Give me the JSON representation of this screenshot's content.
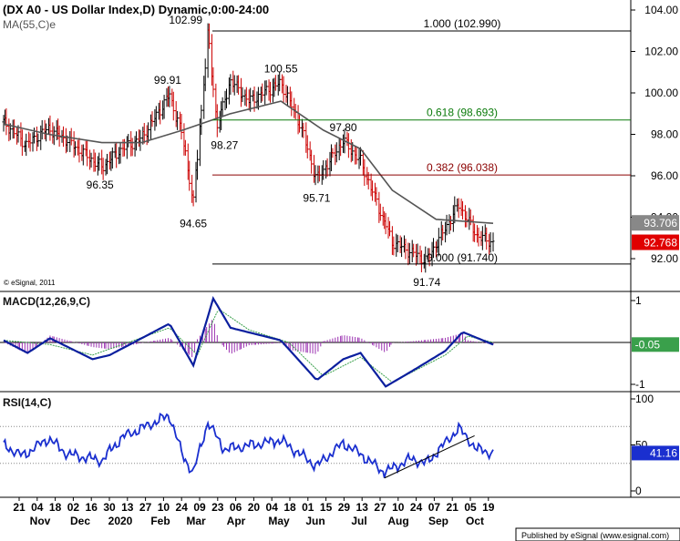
{
  "header": {
    "title": "(DX A0 - US Dollar Index,D) Dynamic,0:00-24:00",
    "ma_label": "MA(55,C)e",
    "copyright": "© eSignal, 2011"
  },
  "footer": {
    "publisher": "Published by eSignal (www.esignal.com)"
  },
  "colors": {
    "price_bar": "#cc0000",
    "ma": "#555555",
    "fib_100": "#000000",
    "fib_618": "#0a7a0a",
    "fib_382": "#8b0000",
    "fib_0": "#000000",
    "macd": "#0b1f9e",
    "signal": "#3aa04b",
    "histogram": "#9a2fb0",
    "rsi": "#1a2fcf",
    "trendline": "#000000"
  },
  "x_axis": {
    "day_labels": [
      "21",
      "04",
      "18",
      "02",
      "16",
      "30",
      "13",
      "27",
      "10",
      "24",
      "09",
      "23",
      "06",
      "20",
      "04",
      "18",
      "01",
      "15",
      "29",
      "13",
      "27",
      "10",
      "24",
      "07",
      "21",
      "05",
      "19"
    ],
    "month_labels": [
      "Nov",
      "Dec",
      "2020",
      "Feb",
      "Mar",
      "Apr",
      "May",
      "Jun",
      "Jul",
      "Aug",
      "Sep",
      "Oct"
    ]
  },
  "price_axis": {
    "ticks": [
      "104.00",
      "102.00",
      "100.00",
      "98.00",
      "96.00",
      "94.00",
      "92.00"
    ],
    "ma_last": "93.706",
    "close_last": "92.768"
  },
  "annotations": {
    "points": [
      "102.99",
      "99.91",
      "100.55",
      "97.80",
      "98.27",
      "96.35",
      "95.71",
      "94.65",
      "91.74"
    ],
    "fib_labels": [
      "1.000 (102.990)",
      "0.618 (98.693)",
      "0.382 (96.038)",
      "0.000 (91.740)"
    ]
  },
  "macd_panel": {
    "title": "MACD(12,26,9,C)",
    "ticks": [
      "1",
      "-1"
    ],
    "last": "-0.05"
  },
  "rsi_panel": {
    "title": "RSI(14,C)",
    "ticks": [
      "100",
      "50",
      "0"
    ],
    "last": "41.16"
  },
  "chart_data": [
    {
      "type": "ohlc",
      "title": "(DX A0 - US Dollar Index,D) Dynamic,0:00-24:00",
      "x_range": [
        "2019-10-18",
        "2020-10-21"
      ],
      "ylim": [
        91.0,
        104.5
      ],
      "y_ticks": [
        104,
        102,
        100,
        98,
        96,
        94,
        92
      ],
      "key_points": [
        {
          "label": "99.91",
          "value": 99.91,
          "date": "2020-02-20"
        },
        {
          "label": "96.35",
          "value": 96.35,
          "date": "2019-12-31"
        },
        {
          "label": "102.99",
          "value": 102.99,
          "date": "2020-03-20"
        },
        {
          "label": "94.65",
          "value": 94.65,
          "date": "2020-03-09"
        },
        {
          "label": "98.27",
          "value": 98.27,
          "date": "2020-03-27"
        },
        {
          "label": "100.55",
          "value": 100.55,
          "date": "2020-05-14"
        },
        {
          "label": "95.71",
          "value": 95.71,
          "date": "2020-06-10"
        },
        {
          "label": "97.80",
          "value": 97.8,
          "date": "2020-06-30"
        },
        {
          "label": "91.74",
          "value": 91.74,
          "date": "2020-09-01"
        }
      ],
      "price_path": [
        {
          "date": "2019-10-18",
          "value": 98.6
        },
        {
          "date": "2019-11-04",
          "value": 97.5
        },
        {
          "date": "2019-11-21",
          "value": 98.3
        },
        {
          "date": "2019-12-05",
          "value": 97.7
        },
        {
          "date": "2019-12-31",
          "value": 96.4
        },
        {
          "date": "2020-01-15",
          "value": 97.3
        },
        {
          "date": "2020-01-30",
          "value": 97.8
        },
        {
          "date": "2020-02-20",
          "value": 99.9
        },
        {
          "date": "2020-03-01",
          "value": 97.9
        },
        {
          "date": "2020-03-09",
          "value": 94.7
        },
        {
          "date": "2020-03-20",
          "value": 102.8
        },
        {
          "date": "2020-03-27",
          "value": 98.4
        },
        {
          "date": "2020-04-06",
          "value": 100.6
        },
        {
          "date": "2020-04-20",
          "value": 99.6
        },
        {
          "date": "2020-05-14",
          "value": 100.5
        },
        {
          "date": "2020-05-29",
          "value": 98.4
        },
        {
          "date": "2020-06-10",
          "value": 95.8
        },
        {
          "date": "2020-06-30",
          "value": 97.7
        },
        {
          "date": "2020-07-13",
          "value": 96.7
        },
        {
          "date": "2020-08-06",
          "value": 92.8
        },
        {
          "date": "2020-09-01",
          "value": 91.9
        },
        {
          "date": "2020-09-25",
          "value": 94.6
        },
        {
          "date": "2020-10-09",
          "value": 93.1
        },
        {
          "date": "2020-10-21",
          "value": 92.77
        }
      ],
      "series": [
        {
          "name": "MA(55,C)e",
          "points": [
            {
              "date": "2019-10-18",
              "value": 98.5
            },
            {
              "date": "2019-11-21",
              "value": 98.0
            },
            {
              "date": "2019-12-31",
              "value": 97.6
            },
            {
              "date": "2020-01-30",
              "value": 97.6
            },
            {
              "date": "2020-03-01",
              "value": 98.2
            },
            {
              "date": "2020-04-06",
              "value": 99.0
            },
            {
              "date": "2020-05-14",
              "value": 99.6
            },
            {
              "date": "2020-06-15",
              "value": 98.2
            },
            {
              "date": "2020-07-13",
              "value": 97.3
            },
            {
              "date": "2020-08-06",
              "value": 95.3
            },
            {
              "date": "2020-09-08",
              "value": 93.9
            },
            {
              "date": "2020-10-21",
              "value": 93.706
            }
          ]
        }
      ],
      "levels": [
        {
          "label": "1.000 (102.990)",
          "value": 102.99
        },
        {
          "label": "0.618 (98.693)",
          "value": 98.693
        },
        {
          "label": "0.382 (96.038)",
          "value": 96.038
        },
        {
          "label": "0.000 (91.740)",
          "value": 91.74
        }
      ],
      "last_values": {
        "MA(55,C)e": 93.706,
        "close": 92.768
      }
    },
    {
      "type": "line",
      "title": "MACD(12,26,9,C)",
      "ylim": [
        -1.2,
        1.2
      ],
      "y_ticks": [
        1,
        -1
      ],
      "series": [
        {
          "name": "MACD",
          "points": [
            {
              "date": "2019-10-18",
              "value": 0.05
            },
            {
              "date": "2019-11-05",
              "value": -0.25
            },
            {
              "date": "2019-11-22",
              "value": 0.1
            },
            {
              "date": "2019-12-24",
              "value": -0.4
            },
            {
              "date": "2020-01-06",
              "value": -0.3
            },
            {
              "date": "2020-02-20",
              "value": 0.45
            },
            {
              "date": "2020-03-09",
              "value": -0.55
            },
            {
              "date": "2020-03-24",
              "value": 1.05
            },
            {
              "date": "2020-04-06",
              "value": 0.35
            },
            {
              "date": "2020-05-14",
              "value": 0.05
            },
            {
              "date": "2020-06-10",
              "value": -0.9
            },
            {
              "date": "2020-06-30",
              "value": -0.4
            },
            {
              "date": "2020-07-13",
              "value": -0.25
            },
            {
              "date": "2020-08-01",
              "value": -1.05
            },
            {
              "date": "2020-08-20",
              "value": -0.7
            },
            {
              "date": "2020-09-15",
              "value": -0.2
            },
            {
              "date": "2020-09-28",
              "value": 0.25
            },
            {
              "date": "2020-10-21",
              "value": -0.05
            }
          ]
        },
        {
          "name": "Signal",
          "points": [
            {
              "date": "2019-10-18",
              "value": 0.05
            },
            {
              "date": "2019-11-22",
              "value": -0.05
            },
            {
              "date": "2019-12-24",
              "value": -0.3
            },
            {
              "date": "2020-02-20",
              "value": 0.35
            },
            {
              "date": "2020-03-12",
              "value": -0.3
            },
            {
              "date": "2020-03-28",
              "value": 0.8
            },
            {
              "date": "2020-04-20",
              "value": 0.3
            },
            {
              "date": "2020-05-20",
              "value": 0.0
            },
            {
              "date": "2020-06-15",
              "value": -0.8
            },
            {
              "date": "2020-07-13",
              "value": -0.35
            },
            {
              "date": "2020-08-06",
              "value": -0.95
            },
            {
              "date": "2020-09-15",
              "value": -0.3
            },
            {
              "date": "2020-10-02",
              "value": 0.15
            },
            {
              "date": "2020-10-21",
              "value": 0.0
            }
          ]
        }
      ],
      "last_values": {
        "MACD": -0.05
      }
    },
    {
      "type": "line",
      "title": "RSI(14,C)",
      "ylim": [
        0,
        100
      ],
      "y_ticks": [
        100,
        50,
        0
      ],
      "reference_lines": [
        70,
        30
      ],
      "series": [
        {
          "name": "RSI(14,C)",
          "points": [
            {
              "date": "2019-10-18",
              "value": 50
            },
            {
              "date": "2019-11-01",
              "value": 38
            },
            {
              "date": "2019-11-21",
              "value": 57
            },
            {
              "date": "2019-12-05",
              "value": 40
            },
            {
              "date": "2019-12-31",
              "value": 33
            },
            {
              "date": "2020-01-15",
              "value": 58
            },
            {
              "date": "2020-02-20",
              "value": 82
            },
            {
              "date": "2020-03-01",
              "value": 38
            },
            {
              "date": "2020-03-09",
              "value": 20
            },
            {
              "date": "2020-03-20",
              "value": 75
            },
            {
              "date": "2020-04-01",
              "value": 45
            },
            {
              "date": "2020-05-14",
              "value": 55
            },
            {
              "date": "2020-06-10",
              "value": 27
            },
            {
              "date": "2020-06-30",
              "value": 52
            },
            {
              "date": "2020-07-13",
              "value": 40
            },
            {
              "date": "2020-07-31",
              "value": 20
            },
            {
              "date": "2020-08-20",
              "value": 35
            },
            {
              "date": "2020-09-01",
              "value": 30
            },
            {
              "date": "2020-09-25",
              "value": 68
            },
            {
              "date": "2020-10-09",
              "value": 45
            },
            {
              "date": "2020-10-21",
              "value": 41.16
            }
          ]
        }
      ],
      "last_values": {
        "RSI(14,C)": 41.16
      }
    }
  ]
}
